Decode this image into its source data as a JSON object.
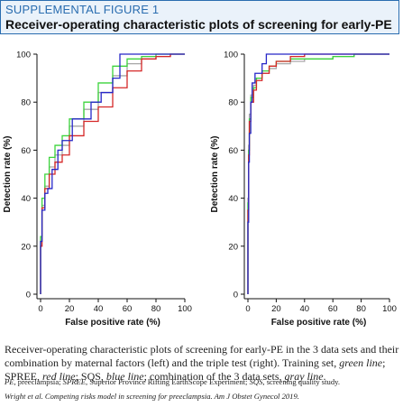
{
  "header": {
    "label": "SUPPLEMENTAL FIGURE 1",
    "title": "Receiver-operating characteristic plots of screening for early-PE"
  },
  "caption": {
    "part1": "Receiver-operating characteristic plots of screening for early-PE in the 3 data sets and their combination by maternal factors (left) and the triple test (right). Training set, ",
    "green": "green line",
    "part2": "; SPREE, ",
    "red": "red line",
    "part3": "; SQS, ",
    "blue": "blue line",
    "part4": "; combination of the 3 data sets, ",
    "gray": "gray line",
    "part5": "."
  },
  "abbreviations": {
    "pe": "PE",
    "pe_def": ", preeclampsia; ",
    "spree": "SPREE",
    "spree_def": ", Superior Province Rifting EarthScope Experiment; ",
    "sqs": "SQS",
    "sqs_def": ", screening quality study."
  },
  "citation": "Wright et al. Competing risks model in screening for preeclampsia. Am J Obstet Gynecol 2019.",
  "colors": {
    "green": "#3cd43c",
    "red": "#d62828",
    "blue": "#2626c8",
    "gray": "#a6a6a6",
    "accent": "#2a6db0"
  },
  "chart_data": [
    {
      "type": "line",
      "title": "",
      "xlabel": "False positive rate (%)",
      "ylabel": "Detection rate (%)",
      "xlim": [
        0,
        100
      ],
      "ylim": [
        0,
        100
      ],
      "xticks": [
        0,
        20,
        40,
        60,
        80,
        100
      ],
      "yticks": [
        0,
        20,
        40,
        60,
        80,
        100
      ],
      "grid": false,
      "series": [
        {
          "color": "gray",
          "x": [
            0,
            1,
            3,
            6,
            10,
            15,
            20,
            30,
            40,
            50,
            60,
            70,
            80,
            90,
            100
          ],
          "y": [
            0,
            22,
            37,
            45,
            53,
            58,
            62,
            70,
            77,
            84,
            91,
            96,
            98,
            99,
            100
          ]
        },
        {
          "color": "green",
          "x": [
            0,
            1,
            3,
            6,
            10,
            15,
            20,
            30,
            40,
            50,
            60,
            70,
            80,
            90,
            100
          ],
          "y": [
            0,
            24,
            40,
            50,
            57,
            62,
            66,
            73,
            80,
            88,
            95,
            98,
            99,
            100,
            100
          ]
        },
        {
          "color": "red",
          "x": [
            0,
            1,
            3,
            6,
            10,
            15,
            20,
            30,
            40,
            50,
            60,
            70,
            80,
            90,
            100
          ],
          "y": [
            0,
            20,
            36,
            44,
            50,
            55,
            58,
            66,
            72,
            78,
            86,
            93,
            98,
            99,
            100
          ]
        },
        {
          "color": "blue",
          "x": [
            0,
            1,
            3,
            5,
            8,
            12,
            15,
            22,
            28,
            35,
            42,
            50,
            55,
            58,
            65,
            70,
            100
          ],
          "y": [
            0,
            22,
            35,
            42,
            44,
            52,
            60,
            64,
            73,
            73,
            80,
            84,
            90,
            100,
            100,
            100,
            100
          ]
        }
      ]
    },
    {
      "type": "line",
      "title": "",
      "xlabel": "False positive rate (%)",
      "ylabel": "Detection rate (%)",
      "xlim": [
        0,
        100
      ],
      "ylim": [
        0,
        100
      ],
      "xticks": [
        0,
        20,
        40,
        60,
        80,
        100
      ],
      "yticks": [
        0,
        20,
        40,
        60,
        80,
        100
      ],
      "grid": false,
      "series": [
        {
          "color": "gray",
          "x": [
            0,
            0.5,
            1,
            2,
            4,
            6,
            10,
            15,
            20,
            30,
            40,
            60,
            75,
            100
          ],
          "y": [
            0,
            40,
            62,
            75,
            83,
            87,
            90,
            92,
            94,
            96,
            97,
            98,
            99,
            100
          ]
        },
        {
          "color": "green",
          "x": [
            0,
            0.5,
            1,
            2,
            4,
            6,
            10,
            15,
            20,
            30,
            40,
            60,
            75,
            100
          ],
          "y": [
            0,
            38,
            60,
            73,
            82,
            86,
            90,
            93,
            95,
            97,
            98,
            98,
            99,
            100
          ]
        },
        {
          "color": "red",
          "x": [
            0,
            0.5,
            1,
            2,
            4,
            6,
            10,
            15,
            20,
            30,
            40,
            60,
            100
          ],
          "y": [
            0,
            35,
            58,
            72,
            80,
            85,
            89,
            92,
            95,
            97,
            99,
            100,
            100
          ]
        },
        {
          "color": "blue",
          "x": [
            0,
            0.5,
            1,
            2,
            3,
            5,
            7,
            10,
            13,
            20,
            30,
            100
          ],
          "y": [
            0,
            30,
            55,
            67,
            80,
            88,
            92,
            92,
            96,
            100,
            100,
            100
          ]
        }
      ]
    }
  ]
}
